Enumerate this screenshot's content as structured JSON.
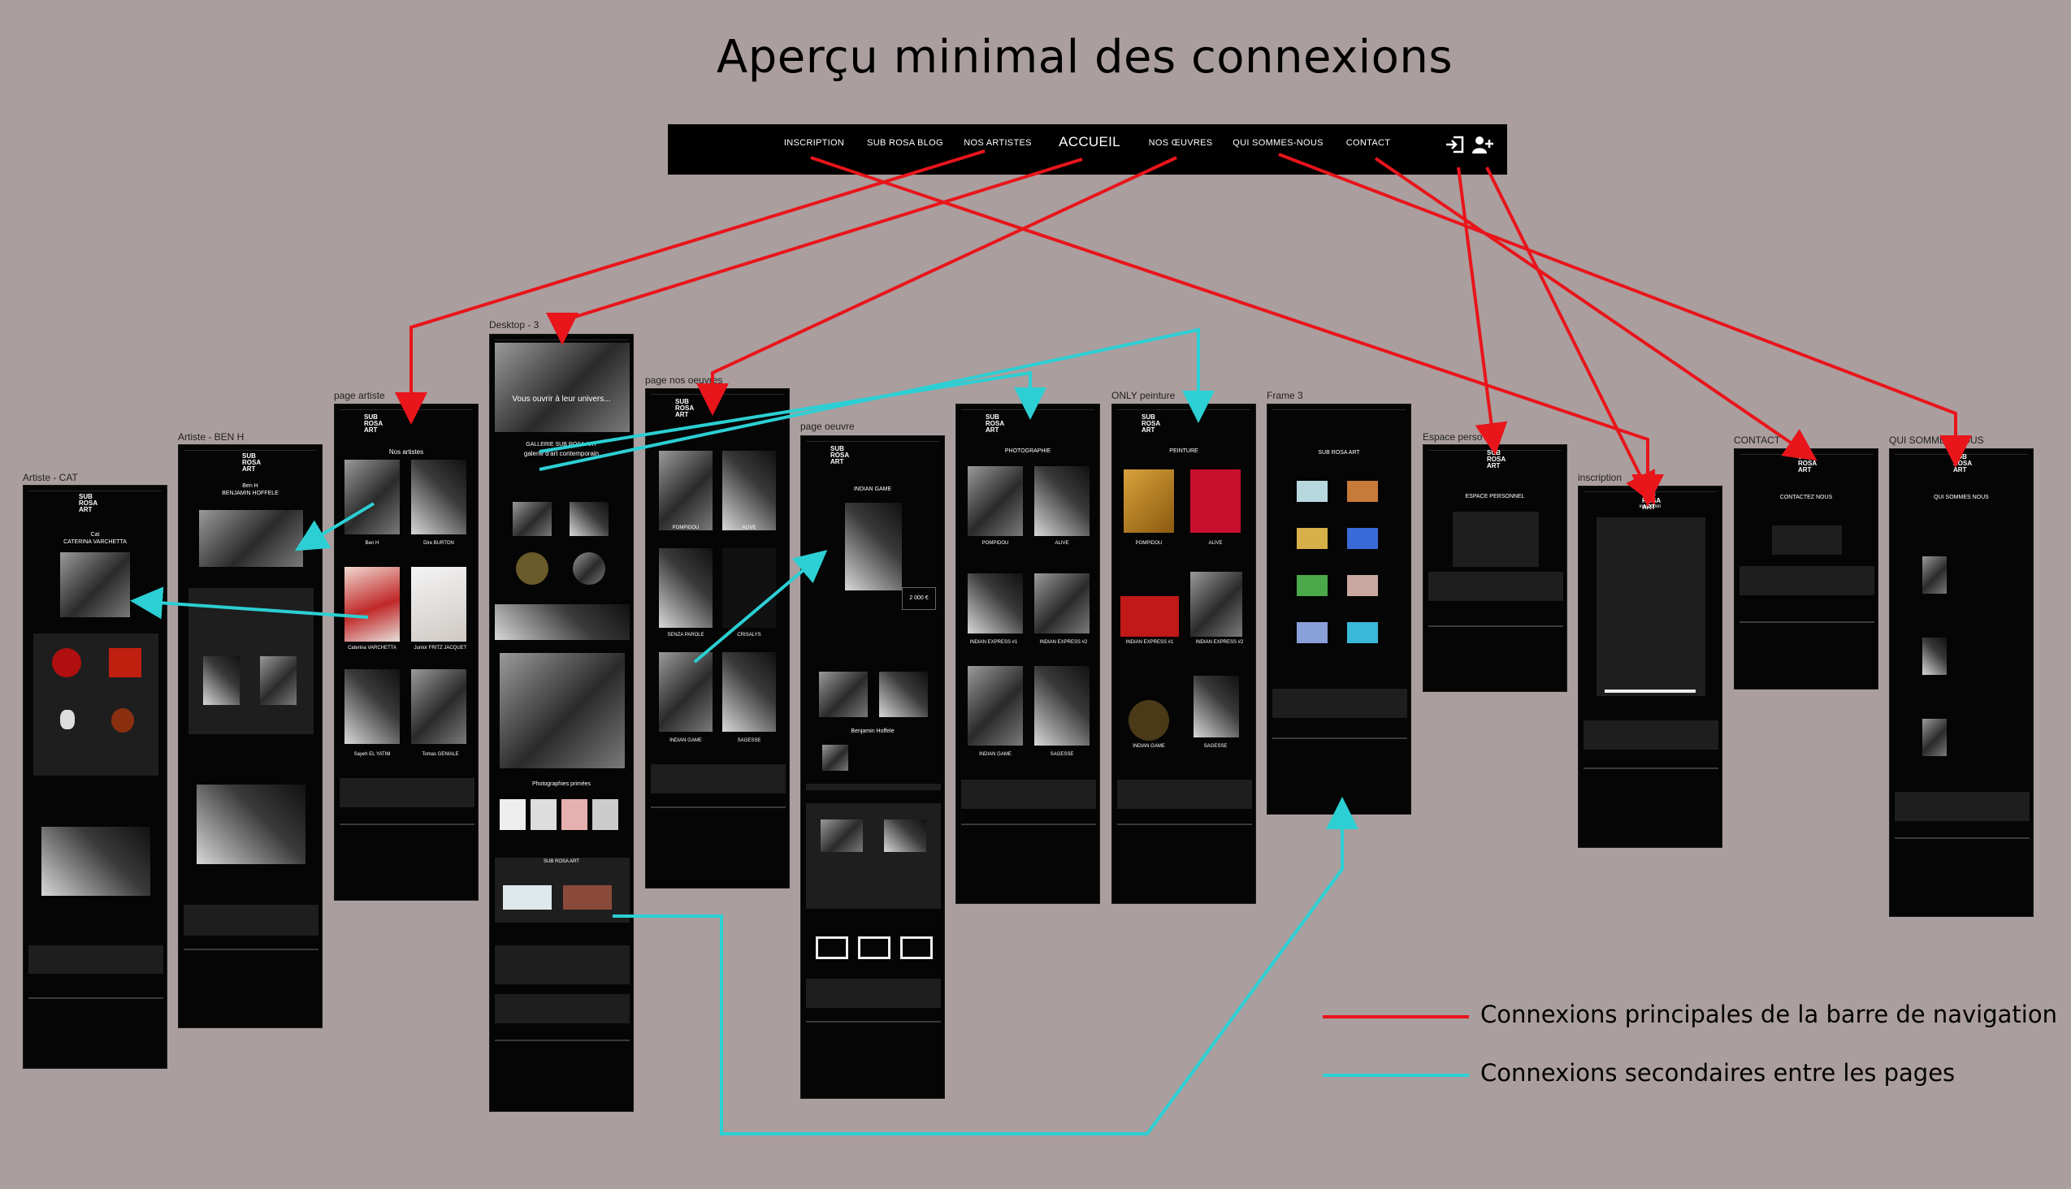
{
  "title": "Aperçu minimal des connexions",
  "colors": {
    "background": "#ab9e9e",
    "primary_connection": "#e8151b",
    "secondary_connection": "#2ccfd3",
    "frame": "#050505"
  },
  "navbar": {
    "items": [
      "INSCRIPTION",
      "SUB ROSA BLOG",
      "NOS ARTISTES",
      "ACCUEIL",
      "NOS ŒUVRES",
      "QUI SOMMES-NOUS",
      "CONTACT"
    ],
    "icons": [
      "login-icon",
      "add-user-icon"
    ]
  },
  "frames": [
    {
      "label": "Artiste - CAT",
      "texts": [
        "Cat",
        "CATERINA VARCHETTA"
      ]
    },
    {
      "label": "Artiste - BEN H",
      "texts": [
        "Ben H",
        "BENJAMIN HOFFELE"
      ]
    },
    {
      "label": "page artiste",
      "texts": [
        "Nos artistes",
        "Ben H",
        "Dire BURTON",
        "Caterina VARCHETTA",
        "Junior FRITZ JACQUET",
        "Sayeh EL YATIM",
        "Tomas GENIALE"
      ]
    },
    {
      "label": "Desktop - 3",
      "texts": [
        "Vous ouvrir à leur univers...",
        "GALLERIE SUB ROSA ART",
        "galerie d'art contemporain",
        "Photographies primées",
        "SUB ROSA ART"
      ]
    },
    {
      "label": "page nos oeuvres",
      "texts": [
        "POMPIDOU",
        "ALIVE",
        "SENZA PAROLE",
        "CRISALYS",
        "INDIAN GAME",
        "SAGESSE"
      ]
    },
    {
      "label": "page oeuvre",
      "texts": [
        "INDIAN GAME",
        "2 000 €",
        "Benjamin Hoffele"
      ]
    },
    {
      "label": "",
      "texts": [
        "PHOTOGRAPHIE",
        "POMPIDOU",
        "ALIVE",
        "INDIAN EXPRESS #1",
        "INDIAN EXPRESS #2",
        "INDIAN GAME",
        "SAGESSE"
      ]
    },
    {
      "label": "ONLY peinture",
      "texts": [
        "PEINTURE",
        "POMPIDOU",
        "ALIVE",
        "INDIAN EXPRESS #1",
        "INDIAN EXPRESS #2",
        "INDIAN GAME",
        "SAGESSE"
      ]
    },
    {
      "label": "Frame 3",
      "texts": [
        "SUB ROSA ART"
      ]
    },
    {
      "label": "Espace perso",
      "texts": [
        "ESPACE PERSONNEL"
      ]
    },
    {
      "label": "inscription",
      "texts": [
        "inscription"
      ]
    },
    {
      "label": "CONTACT",
      "texts": [
        "CONTACTEZ NOUS"
      ]
    },
    {
      "label": "QUI SOMMES-NOUS",
      "texts": [
        "QUI SOMMES NOUS"
      ]
    }
  ],
  "logo_text": [
    "SUB",
    "ROSA",
    "ART"
  ],
  "legend": [
    {
      "label": "Connexions principales de la barre de navigation",
      "color": "#e8151b"
    },
    {
      "label": "Connexions secondaires entre les pages",
      "color": "#2ccfd3"
    }
  ]
}
